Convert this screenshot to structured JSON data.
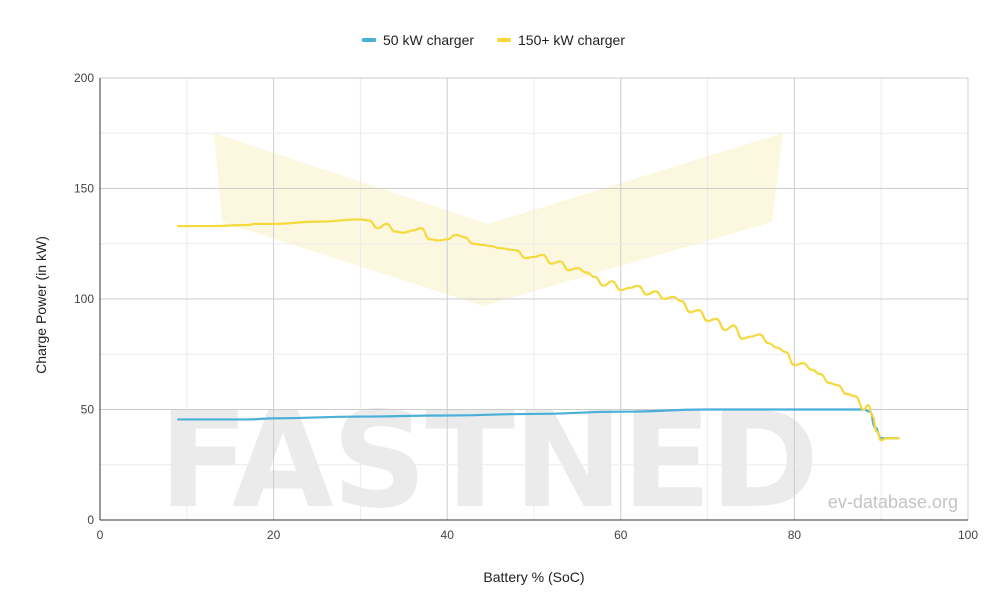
{
  "chart_data": {
    "type": "line",
    "title": "",
    "xlabel": "Battery % (SoC)",
    "ylabel": "Charge Power (in kW)",
    "xlim": [
      0,
      100
    ],
    "ylim": [
      0,
      200
    ],
    "xticks": [
      0,
      20,
      40,
      60,
      80,
      100
    ],
    "yticks": [
      0,
      50,
      100,
      150,
      200
    ],
    "grid": true,
    "legend_position": "top",
    "watermark": "FASTNED",
    "credit": "ev-database.org",
    "series": [
      {
        "name": "50 kW charger",
        "color": "#4aafd9",
        "points": [
          [
            9,
            45.5
          ],
          [
            17,
            45.5
          ],
          [
            20,
            46
          ],
          [
            30,
            46.8
          ],
          [
            40,
            47.3
          ],
          [
            50,
            48
          ],
          [
            60,
            49
          ],
          [
            70,
            50
          ],
          [
            80,
            50
          ],
          [
            88,
            50
          ],
          [
            88.7,
            49
          ],
          [
            89.3,
            42
          ],
          [
            90,
            37
          ],
          [
            91,
            37
          ],
          [
            92,
            37
          ]
        ]
      },
      {
        "name": "150+ kW charger",
        "color": "#f5d93d",
        "points": [
          [
            9,
            133
          ],
          [
            13,
            133
          ],
          [
            17,
            133.5
          ],
          [
            18,
            134
          ],
          [
            20,
            134
          ],
          [
            25,
            135
          ],
          [
            30,
            136
          ],
          [
            31,
            135.5
          ],
          [
            32,
            132
          ],
          [
            33,
            134
          ],
          [
            34,
            130.5
          ],
          [
            35,
            130
          ],
          [
            36,
            131
          ],
          [
            37,
            132
          ],
          [
            38,
            127
          ],
          [
            39,
            126.5
          ],
          [
            40,
            127
          ],
          [
            41,
            129
          ],
          [
            42,
            128
          ],
          [
            43,
            125
          ],
          [
            44,
            124.5
          ],
          [
            45,
            124
          ],
          [
            46,
            123
          ],
          [
            48,
            122
          ],
          [
            49,
            118.5
          ],
          [
            50,
            119
          ],
          [
            51,
            120
          ],
          [
            52,
            116
          ],
          [
            53,
            117
          ],
          [
            54,
            113
          ],
          [
            55,
            114
          ],
          [
            56,
            112
          ],
          [
            57,
            110
          ],
          [
            58,
            106
          ],
          [
            59,
            108
          ],
          [
            60,
            104
          ],
          [
            61,
            105
          ],
          [
            62,
            106
          ],
          [
            63,
            102
          ],
          [
            64,
            103.5
          ],
          [
            65,
            100
          ],
          [
            66,
            101
          ],
          [
            67,
            99
          ],
          [
            68,
            94
          ],
          [
            69,
            95
          ],
          [
            70,
            90
          ],
          [
            71,
            91
          ],
          [
            72,
            86
          ],
          [
            73,
            88
          ],
          [
            74,
            82
          ],
          [
            75,
            83
          ],
          [
            76,
            84
          ],
          [
            77,
            80
          ],
          [
            78,
            78
          ],
          [
            79,
            76
          ],
          [
            80,
            70
          ],
          [
            81,
            71
          ],
          [
            82,
            68
          ],
          [
            83,
            66
          ],
          [
            84,
            62
          ],
          [
            85,
            61
          ],
          [
            86,
            57
          ],
          [
            87,
            56
          ],
          [
            88,
            50
          ],
          [
            88.5,
            52
          ],
          [
            89,
            47
          ],
          [
            89.5,
            40
          ],
          [
            90,
            36
          ],
          [
            90.5,
            37
          ],
          [
            91,
            37
          ],
          [
            92,
            37
          ]
        ]
      }
    ]
  }
}
